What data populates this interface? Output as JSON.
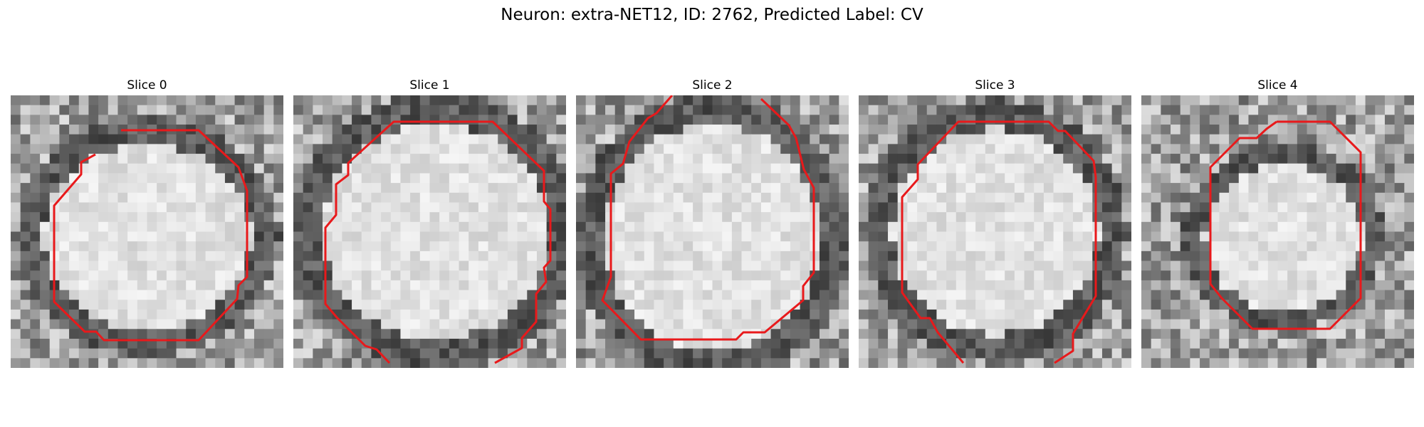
{
  "figure": {
    "title": "Neuron: extra-NET12, ID: 2762, Predicted Label: CV"
  },
  "colors": {
    "background": "#ffffff",
    "contour": "#e8191b",
    "image_dark": "#1a1a1a",
    "image_light": "#f2f2f2"
  },
  "panels": [
    {
      "title": "Slice 0"
    },
    {
      "title": "Slice 1"
    },
    {
      "title": "Slice 2"
    },
    {
      "title": "Slice 3"
    },
    {
      "title": "Slice 4"
    }
  ]
}
